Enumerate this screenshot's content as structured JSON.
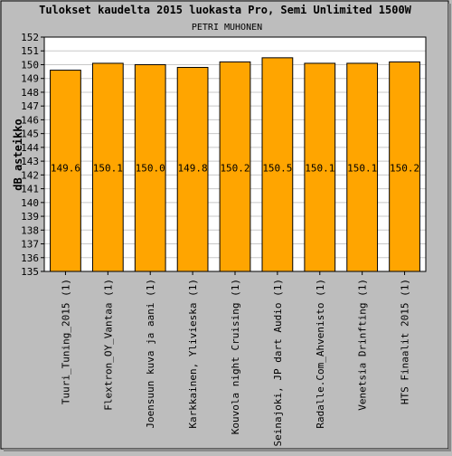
{
  "chart_data": {
    "type": "bar",
    "title": "Tulokset kaudelta 2015 luokasta Pro, Semi Unlimited 1500W",
    "subtitle": "PETRI MUHONEN",
    "ylabel": "dB asteikko",
    "xlabel": "",
    "ylim": [
      135,
      152
    ],
    "yticks": [
      135,
      136,
      137,
      138,
      139,
      140,
      141,
      142,
      143,
      144,
      145,
      146,
      147,
      148,
      149,
      150,
      151,
      152
    ],
    "grid": true,
    "categories": [
      "Tuuri_Tuning_2015 (1)",
      "Flextron_OY_Vantaa (1)",
      "Joensuun kuva ja aani (1)",
      "Karkkainen, Ylivieska (1)",
      "Kouvola night Cruising (1)",
      "Seinajoki, JP dart Audio (1)",
      "Radalle.Com_Ahvenisto (1)",
      "Venetsia Drinfting (1)",
      "HTS Finaalit 2015 (1)"
    ],
    "values": [
      149.6,
      150.1,
      150.0,
      149.8,
      150.2,
      150.5,
      150.1,
      150.1,
      150.2
    ],
    "value_labels": [
      "149.6",
      "150.1",
      "150.0",
      "149.8",
      "150.2",
      "150.5",
      "150.1",
      "150.1",
      "150.2"
    ],
    "bar_color": "#ffa500",
    "plot_bg": "#ffffff",
    "page_bg": "#bdbdbd"
  }
}
